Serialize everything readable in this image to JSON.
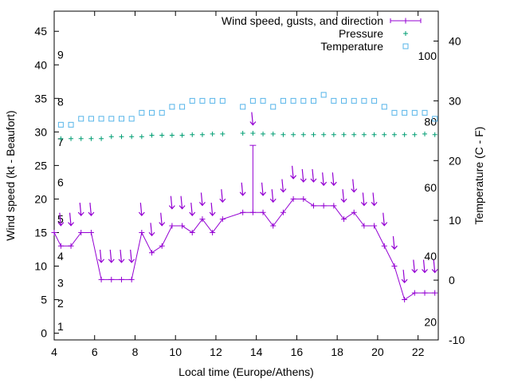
{
  "chart_data": {
    "type": "line",
    "x_axis": {
      "label": "Local time (Europe/Athens)",
      "range": [
        4,
        23
      ],
      "ticks": [
        4,
        6,
        8,
        10,
        12,
        14,
        16,
        18,
        20,
        22
      ]
    },
    "y_axis_left": {
      "label": "Wind speed (kt - Beaufort)",
      "range": [
        -1,
        48
      ],
      "ticks": [
        0,
        5,
        10,
        15,
        20,
        25,
        30,
        35,
        40,
        45
      ]
    },
    "y_axis_right": {
      "label": "Temperature (C - F)",
      "range": [
        -10,
        45
      ],
      "ticks": [
        -10,
        0,
        10,
        20,
        30,
        40
      ]
    },
    "beaufort_labels": [
      {
        "text": "1",
        "y": 1
      },
      {
        "text": "2",
        "y": 4.5
      },
      {
        "text": "3",
        "y": 7.5
      },
      {
        "text": "4",
        "y": 11.5
      },
      {
        "text": "5",
        "y": 17
      },
      {
        "text": "6",
        "y": 22.5
      },
      {
        "text": "7",
        "y": 28.5
      },
      {
        "text": "8",
        "y": 34.5
      },
      {
        "text": "9",
        "y": 41.5
      }
    ],
    "fahrenheit_labels": [
      {
        "text": "20",
        "temp": -7
      },
      {
        "text": "40",
        "temp": 4
      },
      {
        "text": "60",
        "temp": 15.5
      },
      {
        "text": "80",
        "temp": 26.5
      },
      {
        "text": "100",
        "temp": 37.5
      }
    ],
    "legend": {
      "position": "top-right",
      "entries": [
        "Wind speed, gusts, and direction",
        "Pressure",
        "Temperature"
      ]
    },
    "series": [
      {
        "name": "Wind speed, gusts, and direction",
        "color": "#9400d3",
        "axis": "left",
        "x": [
          4.0,
          4.33,
          4.83,
          5.33,
          5.83,
          6.33,
          6.83,
          7.33,
          7.83,
          8.33,
          8.83,
          9.33,
          9.83,
          10.33,
          10.83,
          11.33,
          11.83,
          12.33,
          13.33,
          13.83,
          14.33,
          14.83,
          15.33,
          15.83,
          16.33,
          16.83,
          17.33,
          17.83,
          18.33,
          18.83,
          19.33,
          19.83,
          20.33,
          20.83,
          21.33,
          21.83,
          22.33,
          22.83
        ],
        "y": [
          15,
          13,
          13,
          15,
          15,
          8,
          8,
          8,
          8,
          15,
          12,
          13,
          16,
          16,
          15,
          17,
          15,
          17,
          18,
          18,
          18,
          16,
          18,
          20,
          20,
          19,
          19,
          19,
          17,
          18,
          16,
          16,
          13,
          10,
          5,
          6,
          6,
          6
        ],
        "gusts": [
          {
            "x": 13.83,
            "y": 28
          }
        ]
      },
      {
        "name": "Pressure",
        "color": "#009e73",
        "axis": "left",
        "x": [
          4.33,
          4.83,
          5.33,
          5.83,
          6.33,
          6.83,
          7.33,
          7.83,
          8.33,
          8.83,
          9.33,
          9.83,
          10.33,
          10.83,
          11.33,
          11.83,
          12.33,
          13.33,
          13.83,
          14.33,
          14.83,
          15.33,
          15.83,
          16.33,
          16.83,
          17.33,
          17.83,
          18.33,
          18.83,
          19.33,
          19.83,
          20.33,
          20.83,
          21.33,
          21.83,
          22.33,
          22.83
        ],
        "y": [
          29,
          29,
          29,
          29,
          29,
          29.3,
          29.3,
          29.3,
          29.3,
          29.5,
          29.5,
          29.5,
          29.5,
          29.6,
          29.6,
          29.7,
          29.7,
          29.8,
          29.8,
          29.7,
          29.7,
          29.6,
          29.6,
          29.6,
          29.6,
          29.6,
          29.6,
          29.6,
          29.6,
          29.6,
          29.6,
          29.6,
          29.6,
          29.6,
          29.6,
          29.7,
          29.6
        ]
      },
      {
        "name": "Temperature",
        "color": "#56b4e9",
        "axis": "right",
        "x": [
          4.33,
          4.83,
          5.33,
          5.83,
          6.33,
          6.83,
          7.33,
          7.83,
          8.33,
          8.83,
          9.33,
          9.83,
          10.33,
          10.83,
          11.33,
          11.83,
          12.33,
          13.33,
          13.83,
          14.33,
          14.83,
          15.33,
          15.83,
          16.33,
          16.83,
          17.33,
          17.83,
          18.33,
          18.83,
          19.33,
          19.83,
          20.33,
          20.83,
          21.33,
          21.83,
          22.33,
          22.83
        ],
        "y": [
          26,
          26,
          27,
          27,
          27,
          27,
          27,
          27,
          28,
          28,
          28,
          29,
          29,
          30,
          30,
          30,
          30,
          29,
          30,
          30,
          29,
          30,
          30,
          30,
          30,
          31,
          30,
          30,
          30,
          30,
          30,
          29,
          28,
          28,
          28,
          28,
          27
        ]
      }
    ],
    "wind_direction_arrows": {
      "x": [
        4.33,
        4.83,
        5.33,
        5.83,
        6.33,
        6.83,
        7.33,
        7.83,
        8.33,
        8.83,
        9.33,
        9.83,
        10.33,
        10.83,
        11.33,
        11.83,
        12.33,
        13.33,
        13.83,
        14.33,
        14.83,
        15.33,
        15.83,
        16.33,
        16.83,
        17.33,
        17.83,
        18.33,
        18.83,
        19.33,
        19.83,
        20.33,
        20.83,
        21.33,
        21.83,
        22.33,
        22.83
      ],
      "y": [
        17,
        17,
        18.5,
        18.5,
        11.5,
        11.5,
        11.5,
        11.5,
        18.5,
        15.5,
        17,
        19.5,
        19.5,
        18.5,
        20,
        18.5,
        20.5,
        21.5,
        32,
        21.5,
        20.5,
        22,
        24,
        23.5,
        23.5,
        23,
        23,
        20.5,
        22,
        20,
        20,
        17,
        13.5,
        8.5,
        10,
        10,
        10
      ]
    }
  }
}
